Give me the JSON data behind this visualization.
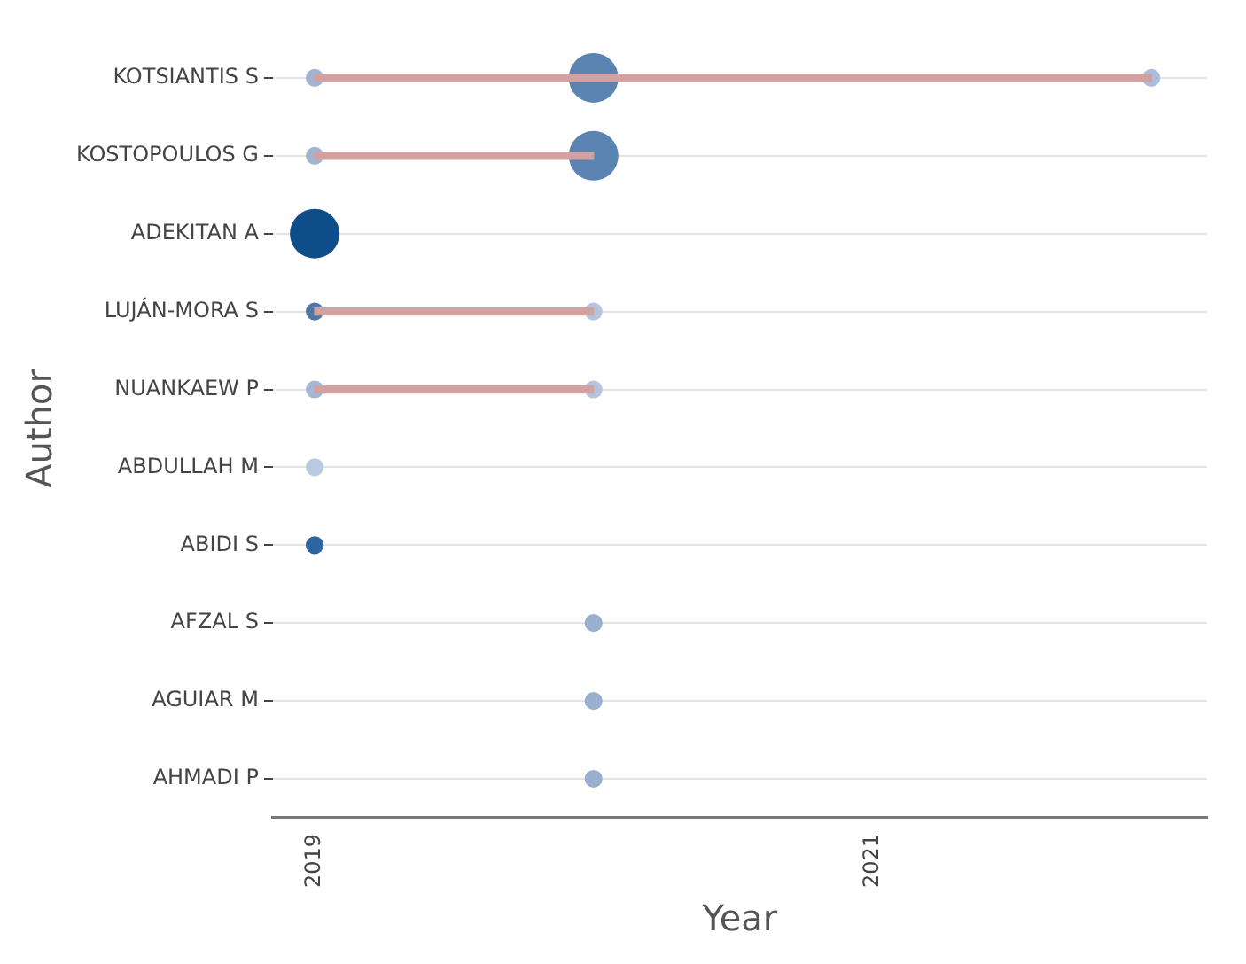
{
  "chart_data": {
    "type": "bubble",
    "orientation": "horizontal",
    "xlabel": "Year",
    "ylabel": "Author",
    "grid": "y",
    "categories": [
      "KOTSIANTIS S",
      "KOSTOPOULOS G",
      "ADEKITAN A",
      "LUJÁN-MORA S",
      "NUANKAEW P",
      "ABDULLAH M",
      "ABIDI S",
      "AFZAL S",
      "AGUIAR M",
      "AHMADI P"
    ],
    "xlim": [
      2018.85,
      2022.2
    ],
    "xticks": [
      2019,
      2021
    ],
    "series": [
      {
        "type": "bar",
        "color": "#d2a2a2",
        "base": [
          2019,
          2019,
          null,
          2019,
          2019,
          null,
          null,
          null,
          null,
          null
        ],
        "values": [
          3,
          1,
          null,
          1,
          1,
          null,
          null,
          null,
          null,
          null
        ]
      },
      {
        "values": [
          2019,
          2019,
          2019,
          2019,
          2019,
          2019,
          2019,
          null,
          null,
          null
        ],
        "sizes": [
          0.13,
          0.13,
          1,
          0.13,
          0.13,
          0.13,
          0.13,
          null,
          null,
          null
        ],
        "colors": [
          "#9fb5d3",
          "#9fb5d3",
          "#0f4c8a",
          "#4f76a6",
          "#a3b8d5",
          "#b9cae0",
          "#2e64a0",
          null,
          null,
          null
        ]
      },
      {
        "values": [
          2020,
          2020,
          null,
          2020,
          2020,
          null,
          null,
          2020,
          2020,
          2020
        ],
        "sizes": [
          1,
          1,
          null,
          0.13,
          0.13,
          null,
          null,
          0.13,
          0.13,
          0.13
        ],
        "colors": [
          "#5a83b1",
          "#5a83b1",
          null,
          "#b4c6de",
          "#b4c6de",
          null,
          null,
          "#98b0ce",
          "#98b0ce",
          "#98b0ce"
        ]
      },
      {
        "values": [
          2022,
          null,
          null,
          null,
          null,
          null,
          null,
          null,
          null,
          null
        ],
        "sizes": [
          0.13,
          null,
          null,
          null,
          null,
          null,
          null,
          null,
          null,
          null
        ],
        "colors": [
          "#a9bedb",
          null,
          null,
          null,
          null,
          null,
          null,
          null,
          null,
          null
        ]
      }
    ]
  }
}
